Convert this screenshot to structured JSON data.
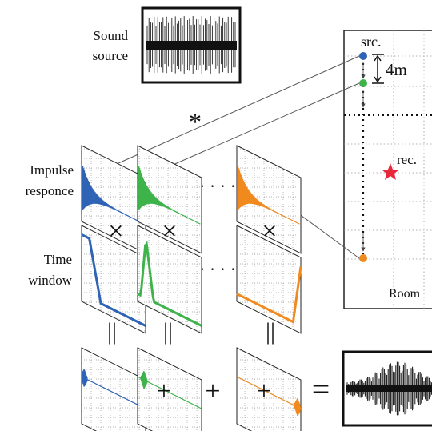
{
  "labels": {
    "sound_source_line1": "Sound",
    "sound_source_line2": "source",
    "impulse_line1": "Impulse",
    "impulse_line2": "responce",
    "time_window_line1": "Time",
    "time_window_line2": "window",
    "convolution_symbol": "*",
    "multiply_symbol": "×",
    "equals_symbol": "||",
    "plus_symbol": "+",
    "result_equals": "=",
    "ellipsis": "· · · ·"
  },
  "room": {
    "label": "Room",
    "source_label": "src.",
    "receiver_label": "rec.",
    "spacing_label": "4m"
  },
  "colors": {
    "series_1": "#2f63b5",
    "series_2": "#3db34a",
    "series_3": "#f08a1e",
    "receiver": "#e8283a",
    "ink": "#111111"
  }
}
